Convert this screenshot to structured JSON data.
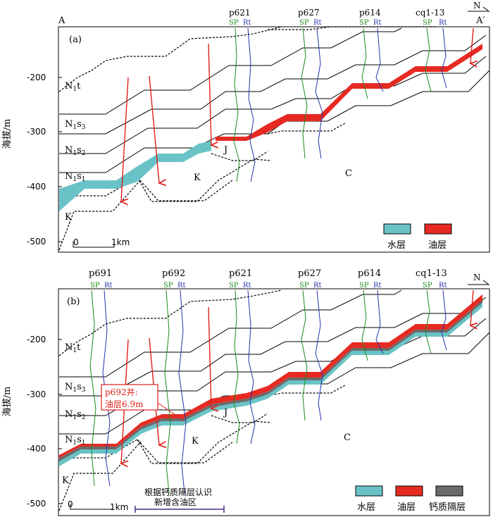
{
  "panel_a": {
    "label": "(a)",
    "section_start": "A",
    "section_end": "A′",
    "wells": [
      {
        "name": "p621",
        "sp": "SP",
        "rt": "Rt"
      },
      {
        "name": "p627",
        "sp": "SP",
        "rt": "Rt"
      },
      {
        "name": "p614",
        "sp": "SP",
        "rt": "Rt"
      },
      {
        "name": "cq1-13",
        "sp": "SP",
        "rt": "Rt"
      }
    ],
    "formations": {
      "n1t": "N",
      "n1t_sub": "1",
      "n1t_tail": "t",
      "n1s3": "N",
      "n1s3_sub1": "1",
      "n1s3_mid": "s",
      "n1s3_sub2": "3",
      "n1s2": "N",
      "n1s2_sub1": "1",
      "n1s2_mid": "s",
      "n1s2_sub2": "2",
      "n1s1": "N",
      "n1s1_sub1": "1",
      "n1s1_mid": "s",
      "n1s1_sub2": "1",
      "k1": "K",
      "k2": "K",
      "j": "J",
      "c": "C"
    },
    "y_axis": {
      "label": "海拔/m",
      "ticks": [
        "-200",
        "-300",
        "-400",
        "-500"
      ]
    },
    "scale": {
      "zero": "0",
      "one": "1km"
    },
    "legend": {
      "water": "水层",
      "oil": "油层"
    }
  },
  "panel_b": {
    "label": "(b)",
    "wells": [
      {
        "name": "p691",
        "sp": "SP",
        "rt": "Rt"
      },
      {
        "name": "p692",
        "sp": "SP",
        "rt": "Rt"
      },
      {
        "name": "p621",
        "sp": "SP",
        "rt": "Rt"
      },
      {
        "name": "p627",
        "sp": "SP",
        "rt": "Rt"
      },
      {
        "name": "p614",
        "sp": "SP",
        "rt": "Rt"
      },
      {
        "name": "cq1-13",
        "sp": "SP",
        "rt": "Rt"
      }
    ],
    "formations": {
      "n1t": "N",
      "n1t_sub": "1",
      "n1t_tail": "t",
      "n1s3": "N",
      "n1s3_sub1": "1",
      "n1s3_mid": "s",
      "n1s3_sub2": "3",
      "n1s2": "N",
      "n1s2_sub1": "1",
      "n1s2_mid": "s",
      "n1s2_sub2": "2",
      "n1s1": "N",
      "n1s1_sub1": "1",
      "n1s1_mid": "s",
      "n1s1_sub2": "1",
      "k1": "K",
      "k2": "K",
      "j": "J",
      "c": "C"
    },
    "y_axis": {
      "label": "海拔/m",
      "ticks": [
        "-200",
        "-300",
        "-400",
        "-500"
      ]
    },
    "scale": {
      "zero": "0",
      "one": "1km"
    },
    "callout": {
      "line1": "p692井:",
      "line2": "油层6.9m"
    },
    "annotation": {
      "line1": "根据钙质隔层认识",
      "line2": "新增含油区"
    },
    "legend": {
      "water": "水层",
      "oil": "油层",
      "calc": "钙质隔层"
    }
  },
  "north": "N",
  "colors": {
    "water": "#69c3c6",
    "oil": "#e62a22",
    "calc": "#6b6b6b",
    "sp": "#1a8a1a",
    "rt": "#2233aa",
    "fault": "#e0201b"
  }
}
